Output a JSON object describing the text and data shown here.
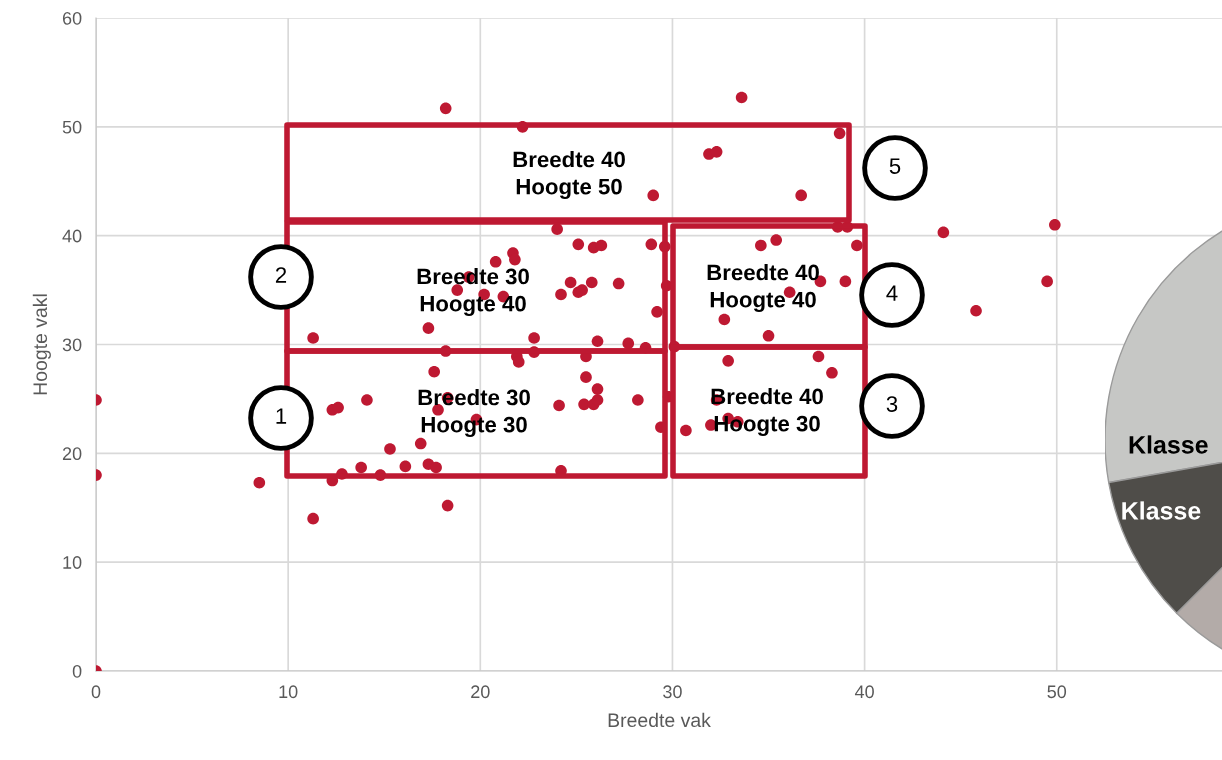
{
  "chart_data": {
    "type": "scatter",
    "xlabel": "Breedte vak",
    "ylabel": "Hoogte vakl",
    "xlim": [
      0,
      58.6
    ],
    "ylim": [
      0,
      60
    ],
    "xticks": [
      0,
      10,
      20,
      30,
      40,
      50
    ],
    "yticks": [
      0,
      10,
      20,
      30,
      40,
      50,
      60
    ],
    "grid": true,
    "marker": "circle",
    "series": [
      {
        "color": "#be1932",
        "x": [
          0,
          0,
          0,
          8.5,
          11.3,
          11.3,
          12.3,
          12.6,
          12.3,
          12.8,
          14.1,
          13.8,
          14.8,
          15.3,
          16.1,
          16.9,
          17.3,
          17.6,
          17.3,
          17.7,
          17.8,
          18.3,
          18.3,
          18.2,
          18.2,
          18.8,
          19.4,
          19.8,
          20.2,
          20.8,
          21.2,
          21.7,
          21.8,
          21.9,
          22.0,
          22.2,
          22.8,
          22.8,
          24.0,
          24.1,
          24.2,
          24.2,
          24.7,
          25.1,
          25.1,
          25.3,
          25.4,
          25.5,
          25.5,
          25.9,
          25.8,
          25.9,
          26.1,
          26.1,
          26.1,
          26.3,
          27.2,
          27.7,
          28.2,
          28.6,
          28.9,
          29.0,
          29.2,
          29.4,
          29.6,
          29.7,
          29.8,
          30.1,
          30.7,
          33.6,
          31.9,
          32.3,
          38.7,
          36.7,
          38.6,
          39.1,
          44.1,
          49.9,
          34.6,
          35.4,
          39.6,
          37.7,
          39.0,
          36.1,
          49.5,
          45.8,
          32.7,
          35.0,
          32.9,
          37.6,
          38.3,
          32.3,
          32.9,
          33.4,
          32.0
        ],
        "values": [
          24.9,
          18.0,
          0,
          17.3,
          30.6,
          14.0,
          24.0,
          24.2,
          17.5,
          18.1,
          24.9,
          18.7,
          18.0,
          20.4,
          18.8,
          20.9,
          19.0,
          27.5,
          31.5,
          18.7,
          24.0,
          25.1,
          15.2,
          29.4,
          51.7,
          35.0,
          36.2,
          23.1,
          34.6,
          37.6,
          34.4,
          38.4,
          37.8,
          28.9,
          28.4,
          50.0,
          30.6,
          29.3,
          40.6,
          24.4,
          34.6,
          18.4,
          35.7,
          34.8,
          39.2,
          35.0,
          24.5,
          27.0,
          28.9,
          38.9,
          35.7,
          24.5,
          25.9,
          24.9,
          30.3,
          39.1,
          35.6,
          30.1,
          24.9,
          29.7,
          39.2,
          43.7,
          33.0,
          22.4,
          39.0,
          35.4,
          25.2,
          29.8,
          22.1,
          52.7,
          47.5,
          47.7,
          49.4,
          43.7,
          40.8,
          40.8,
          40.3,
          41.0,
          39.1,
          39.6,
          39.1,
          35.8,
          35.8,
          34.8,
          35.8,
          33.1,
          32.3,
          30.8,
          28.5,
          28.9,
          27.4,
          24.9,
          23.2,
          22.9,
          22.6
        ]
      }
    ],
    "annotations": [
      "Breedte 30\nHoogte 30",
      "Breedte 30\nHoogte 40",
      "Breedte 40\nHoogte 50",
      "Breedte 40\nHoogte 40",
      "Breedte 40\nHoogte 30",
      "1",
      "2",
      "3",
      "4",
      "5",
      "Klasse",
      "Klasse"
    ]
  }
}
